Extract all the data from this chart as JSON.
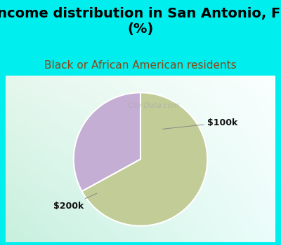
{
  "title": "Income distribution in San Antonio, FL\n(%)",
  "subtitle": "Black or African American residents",
  "slices": [
    {
      "label": "$100k",
      "value": 33,
      "color": "#c4aed4"
    },
    {
      "label": "$200k",
      "value": 67,
      "color": "#c2cc96"
    }
  ],
  "background_color": "#00eeee",
  "title_fontsize": 14,
  "title_color": "#000000",
  "subtitle_fontsize": 11,
  "subtitle_color": "#8b4513",
  "label_color": "#111111",
  "label_fontsize": 9,
  "watermark": "City-Data.com",
  "startangle": 90,
  "pie_edge_color": "white",
  "pie_linewidth": 1.5
}
